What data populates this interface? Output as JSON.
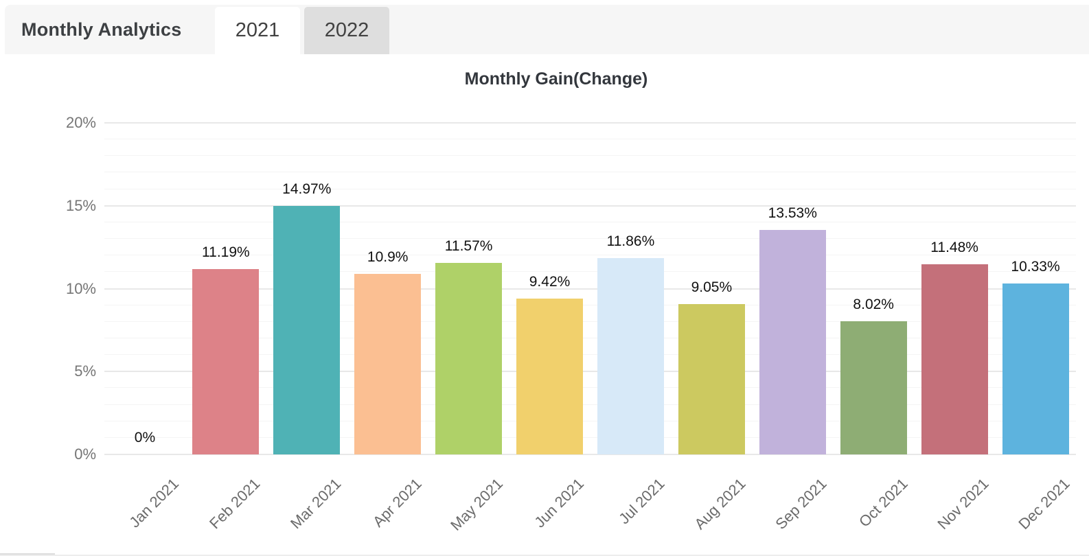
{
  "header": {
    "title": "Monthly Analytics",
    "tabs": [
      {
        "label": "2021",
        "active": true
      },
      {
        "label": "2022",
        "active": false
      }
    ]
  },
  "colors": {
    "header_bg": "#f6f6f6",
    "tab_active_bg": "#ffffff",
    "tab_inactive_bg": "#dedede",
    "grid_major": "#e8e8e8",
    "grid_minor": "#f4f4f4",
    "axis_label": "#757575",
    "x_label": "#6b6b6b",
    "data_label": "#111111"
  },
  "chart_data": {
    "type": "bar",
    "title": "Monthly Gain(Change)",
    "categories": [
      "Jan 2021",
      "Feb 2021",
      "Mar 2021",
      "Apr 2021",
      "May 2021",
      "Jun 2021",
      "Jul 2021",
      "Aug 2021",
      "Sep 2021",
      "Oct 2021",
      "Nov 2021",
      "Dec 2021"
    ],
    "values": [
      0,
      11.19,
      14.97,
      10.9,
      11.57,
      9.42,
      11.86,
      9.05,
      13.53,
      8.02,
      11.48,
      10.33
    ],
    "data_labels": [
      "0%",
      "11.19%",
      "14.97%",
      "10.9%",
      "11.57%",
      "9.42%",
      "11.86%",
      "9.05%",
      "13.53%",
      "8.02%",
      "11.48%",
      "10.33%"
    ],
    "bar_colors": [
      null,
      "#DD8288",
      "#4FB2B5",
      "#FBBF92",
      "#AFD168",
      "#F1D06C",
      "#D7E9F8",
      "#CCC960",
      "#C1B2DB",
      "#8EAD74",
      "#C4707A",
      "#5DB3DE"
    ],
    "xlabel": "",
    "ylabel": "",
    "y_ticks": [
      "0%",
      "5%",
      "10%",
      "15%",
      "20%"
    ],
    "ylim": [
      0,
      20
    ],
    "y_major_step": 5,
    "y_minor_step": 1,
    "grid": true,
    "legend": false,
    "x_label_rotation": -45
  }
}
